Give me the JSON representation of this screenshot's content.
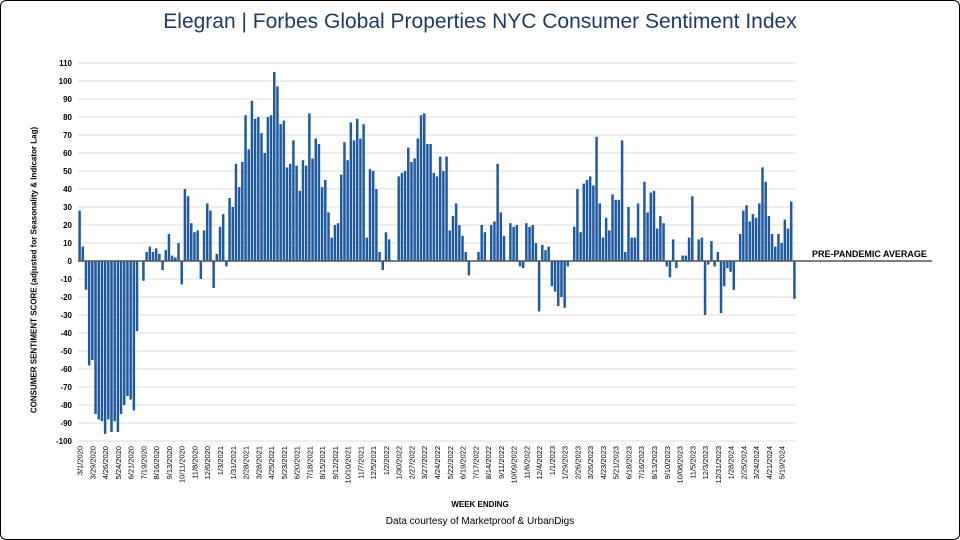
{
  "chart_data": {
    "type": "bar",
    "title": "Elegran | Forbes Global Properties",
    "subtitle": "NYC Consumer Sentiment Index",
    "xlabel": "WEEK ENDING",
    "ylabel": "CONSUMER SENTIMENT SCORE (adjusted for Seasonality & Indicator Lag)",
    "credit": "Data courtesy of Marketproof & UrbanDigs",
    "reference_line": {
      "label": "PRE-PANDEMIC AVERAGE",
      "value": 0
    },
    "ylim": [
      -100,
      110
    ],
    "yticks": [
      110,
      100,
      90,
      80,
      70,
      60,
      50,
      40,
      30,
      20,
      10,
      0,
      -10,
      -20,
      -30,
      -40,
      -50,
      -60,
      -70,
      -80,
      -90,
      -100
    ],
    "xtick_labels": [
      "3/1/2020",
      "3/29/2020",
      "4/26/2020",
      "5/24/2020",
      "6/21/2020",
      "7/19/2020",
      "8/16/2020",
      "9/13/2020",
      "10/11/2020",
      "11/8/2020",
      "12/6/2020",
      "1/3/2021",
      "1/31/2021",
      "2/28/2021",
      "3/28/2021",
      "4/25/2021",
      "5/23/2021",
      "6/20/2021",
      "7/18/2021",
      "8/15/2021",
      "9/12/2021",
      "10/10/2021",
      "11/7/2021",
      "12/5/2021",
      "1/2/2022",
      "1/30/2022",
      "2/27/2022",
      "3/27/2022",
      "4/24/2022",
      "5/22/2022",
      "6/19/2022",
      "7/17/2022",
      "8/14/2022",
      "9/11/2022",
      "10/09/2022",
      "11/6/2022",
      "12/4/2022",
      "1/1/2023",
      "1/29/2023",
      "2/26/2023",
      "3/26/2023",
      "4/23/2023",
      "5/21/2023",
      "6/18/2023",
      "7/16/2023",
      "8/13/2023",
      "9/10/2023",
      "10/08/2023",
      "11/5/2023",
      "12/3/2023",
      "12/31/2023",
      "1/28/2024",
      "2/25/2024",
      "3/24/2024",
      "4/21/2024",
      "5/19/2024"
    ],
    "grid": true,
    "legend": "none",
    "bar_color": "#1f5aa0",
    "values": [
      28,
      8,
      -16,
      -58,
      -55,
      -85,
      -88,
      -89,
      -96,
      -88,
      -95,
      -89,
      -95,
      -85,
      -80,
      -75,
      -77,
      -83,
      -39,
      0,
      -11,
      5,
      8,
      5,
      7,
      4,
      -5,
      6,
      15,
      3,
      2,
      10,
      -13,
      40,
      36,
      21,
      16,
      17,
      -10,
      17,
      32,
      28,
      -15,
      4,
      19,
      26,
      -3,
      35,
      30,
      54,
      41,
      55,
      81,
      62,
      89,
      79,
      80,
      71,
      60,
      80,
      81,
      105,
      97,
      76,
      78,
      52,
      54,
      67,
      53,
      39,
      56,
      53,
      82,
      57,
      68,
      65,
      41,
      45,
      27,
      13,
      20,
      21,
      48,
      66,
      56,
      77,
      67,
      79,
      68,
      76,
      13,
      51,
      50,
      40,
      5,
      -5,
      16,
      12,
      0,
      0,
      47,
      49,
      50,
      63,
      55,
      57,
      68,
      81,
      82,
      65,
      65,
      49,
      47,
      58,
      50,
      58,
      17,
      25,
      32,
      20,
      14,
      5,
      -8,
      0,
      0,
      5,
      20,
      16,
      0,
      20,
      22,
      54,
      27,
      14,
      0,
      21,
      19,
      20,
      -3,
      -4,
      21,
      19,
      20,
      10,
      -28,
      9,
      6,
      8,
      -14,
      -17,
      -25,
      -20,
      -26,
      -3,
      0,
      19,
      40,
      16,
      43,
      45,
      47,
      42,
      69,
      32,
      13,
      24,
      17,
      37,
      34,
      34,
      67,
      5,
      30,
      13,
      13,
      32,
      0,
      44,
      27,
      38,
      39,
      18,
      25,
      21,
      -3,
      -9,
      12,
      -4,
      0,
      3,
      3,
      13,
      36,
      0,
      12,
      13,
      -30,
      -2,
      11,
      -3,
      5,
      -29,
      -14,
      -4,
      -6,
      -16,
      0,
      15,
      28,
      31,
      22,
      26,
      24,
      32,
      52,
      44,
      25,
      15,
      8,
      15,
      10,
      23,
      18,
      33,
      -21
    ]
  }
}
